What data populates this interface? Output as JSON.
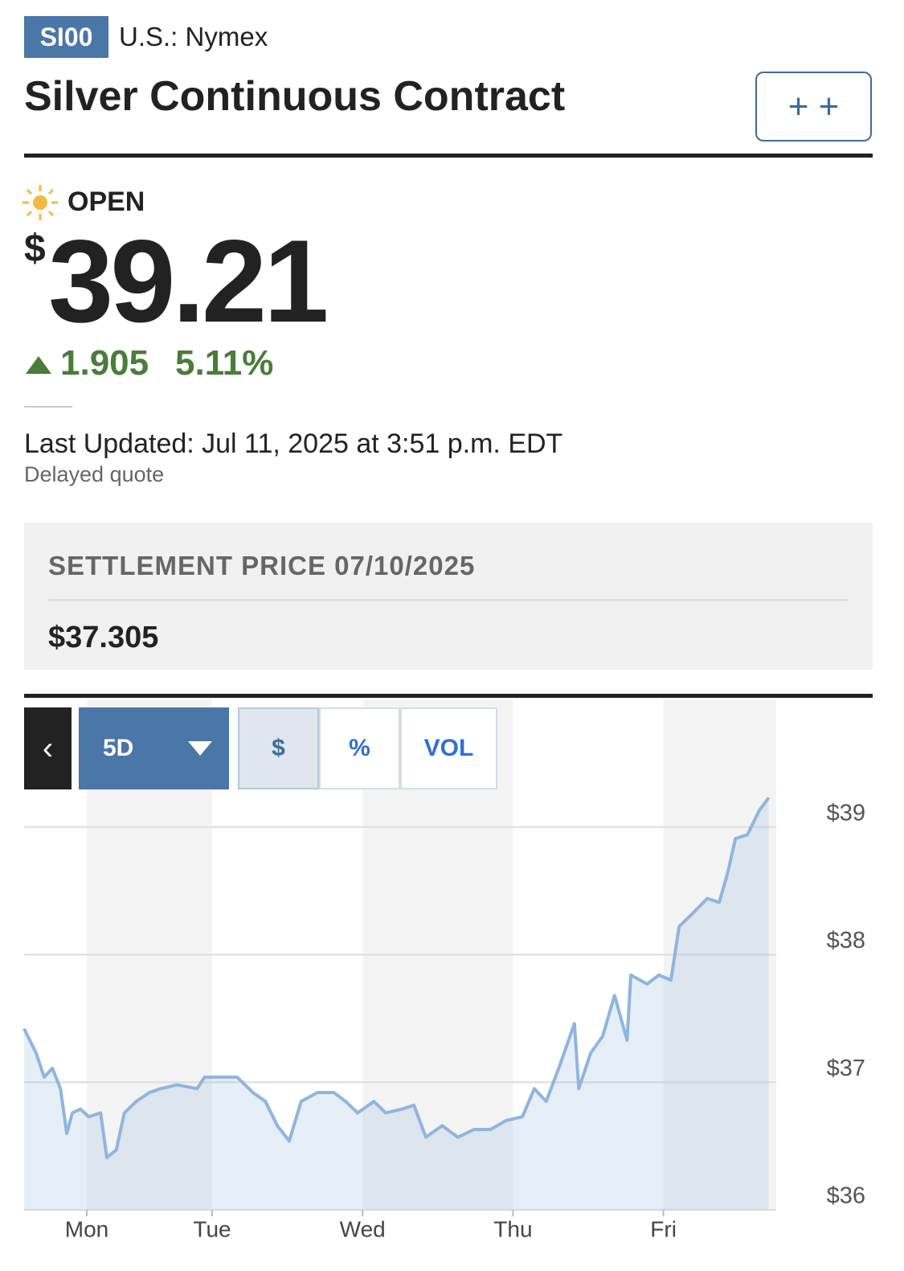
{
  "header": {
    "ticker": "SI00",
    "exchange": "U.S.: Nymex",
    "title": "Silver Continuous Contract",
    "watch_button": "+ +"
  },
  "quote": {
    "status": "OPEN",
    "currency": "$",
    "price": "39.21",
    "change": "1.905",
    "change_percent": "5.11%",
    "last_updated": "Last Updated: Jul 11, 2025 at 3:51 p.m. EDT",
    "delay_note": "Delayed quote"
  },
  "settlement": {
    "label": "SETTLEMENT PRICE 07/10/2025",
    "value": "$37.305"
  },
  "controls": {
    "range": "5D",
    "modes": [
      "$",
      "%",
      "VOL"
    ]
  },
  "chart_data": {
    "type": "line",
    "color": "#8fb5e0",
    "x": [
      0,
      0.6,
      1.9,
      3.2,
      4.5,
      5.8,
      6.8,
      7.7,
      9,
      10.3,
      12.2,
      13.2,
      14.7,
      16,
      17.9,
      20,
      21.8,
      24.4,
      27.6,
      28.8,
      31.4,
      34,
      36.5,
      38.5,
      40.4,
      42.3,
      44.2,
      46.8,
      49.4,
      51.3,
      53.2,
      55.8,
      57.7,
      60.3,
      62.2,
      64.1,
      66.7,
      69.2,
      71.8,
      74.4,
      76.9,
      79.5,
      81.4,
      83.3,
      85.3,
      87.8,
      88.5,
      90.4,
      92.3,
      94.2,
      96.2,
      96.8,
      99.4,
      101.3,
      103.2,
      104.5,
      106.4,
      109,
      110.9,
      112.2,
      113.5,
      115.4,
      117.3,
      118.8
    ],
    "values": [
      37.42,
      37.36,
      37.23,
      37.04,
      37.11,
      36.95,
      36.6,
      36.76,
      36.79,
      36.73,
      36.76,
      36.41,
      36.47,
      36.76,
      36.85,
      36.92,
      36.95,
      36.98,
      36.95,
      37.04,
      37.04,
      37.04,
      36.92,
      36.85,
      36.66,
      36.54,
      36.85,
      36.92,
      36.92,
      36.85,
      36.76,
      36.85,
      36.76,
      36.79,
      36.82,
      36.57,
      36.66,
      36.57,
      36.63,
      36.63,
      36.7,
      36.73,
      36.95,
      36.85,
      37.11,
      37.46,
      36.95,
      37.23,
      37.36,
      37.68,
      37.33,
      37.84,
      37.77,
      37.84,
      37.8,
      38.22,
      38.31,
      38.44,
      38.41,
      38.63,
      38.91,
      38.94,
      39.13,
      39.23
    ],
    "xlim": [
      0,
      120
    ],
    "xticks": [
      {
        "value": 10,
        "label": "Mon"
      },
      {
        "value": 30,
        "label": "Tue"
      },
      {
        "value": 54,
        "label": "Wed"
      },
      {
        "value": 78,
        "label": "Thu"
      },
      {
        "value": 102,
        "label": "Fri"
      }
    ],
    "ylim": [
      36,
      40
    ],
    "yticks": [
      {
        "value": 36,
        "label": "$36"
      },
      {
        "value": 37,
        "label": "$37"
      },
      {
        "value": 38,
        "label": "$38"
      },
      {
        "value": 39,
        "label": "$39"
      }
    ],
    "grid": true
  }
}
